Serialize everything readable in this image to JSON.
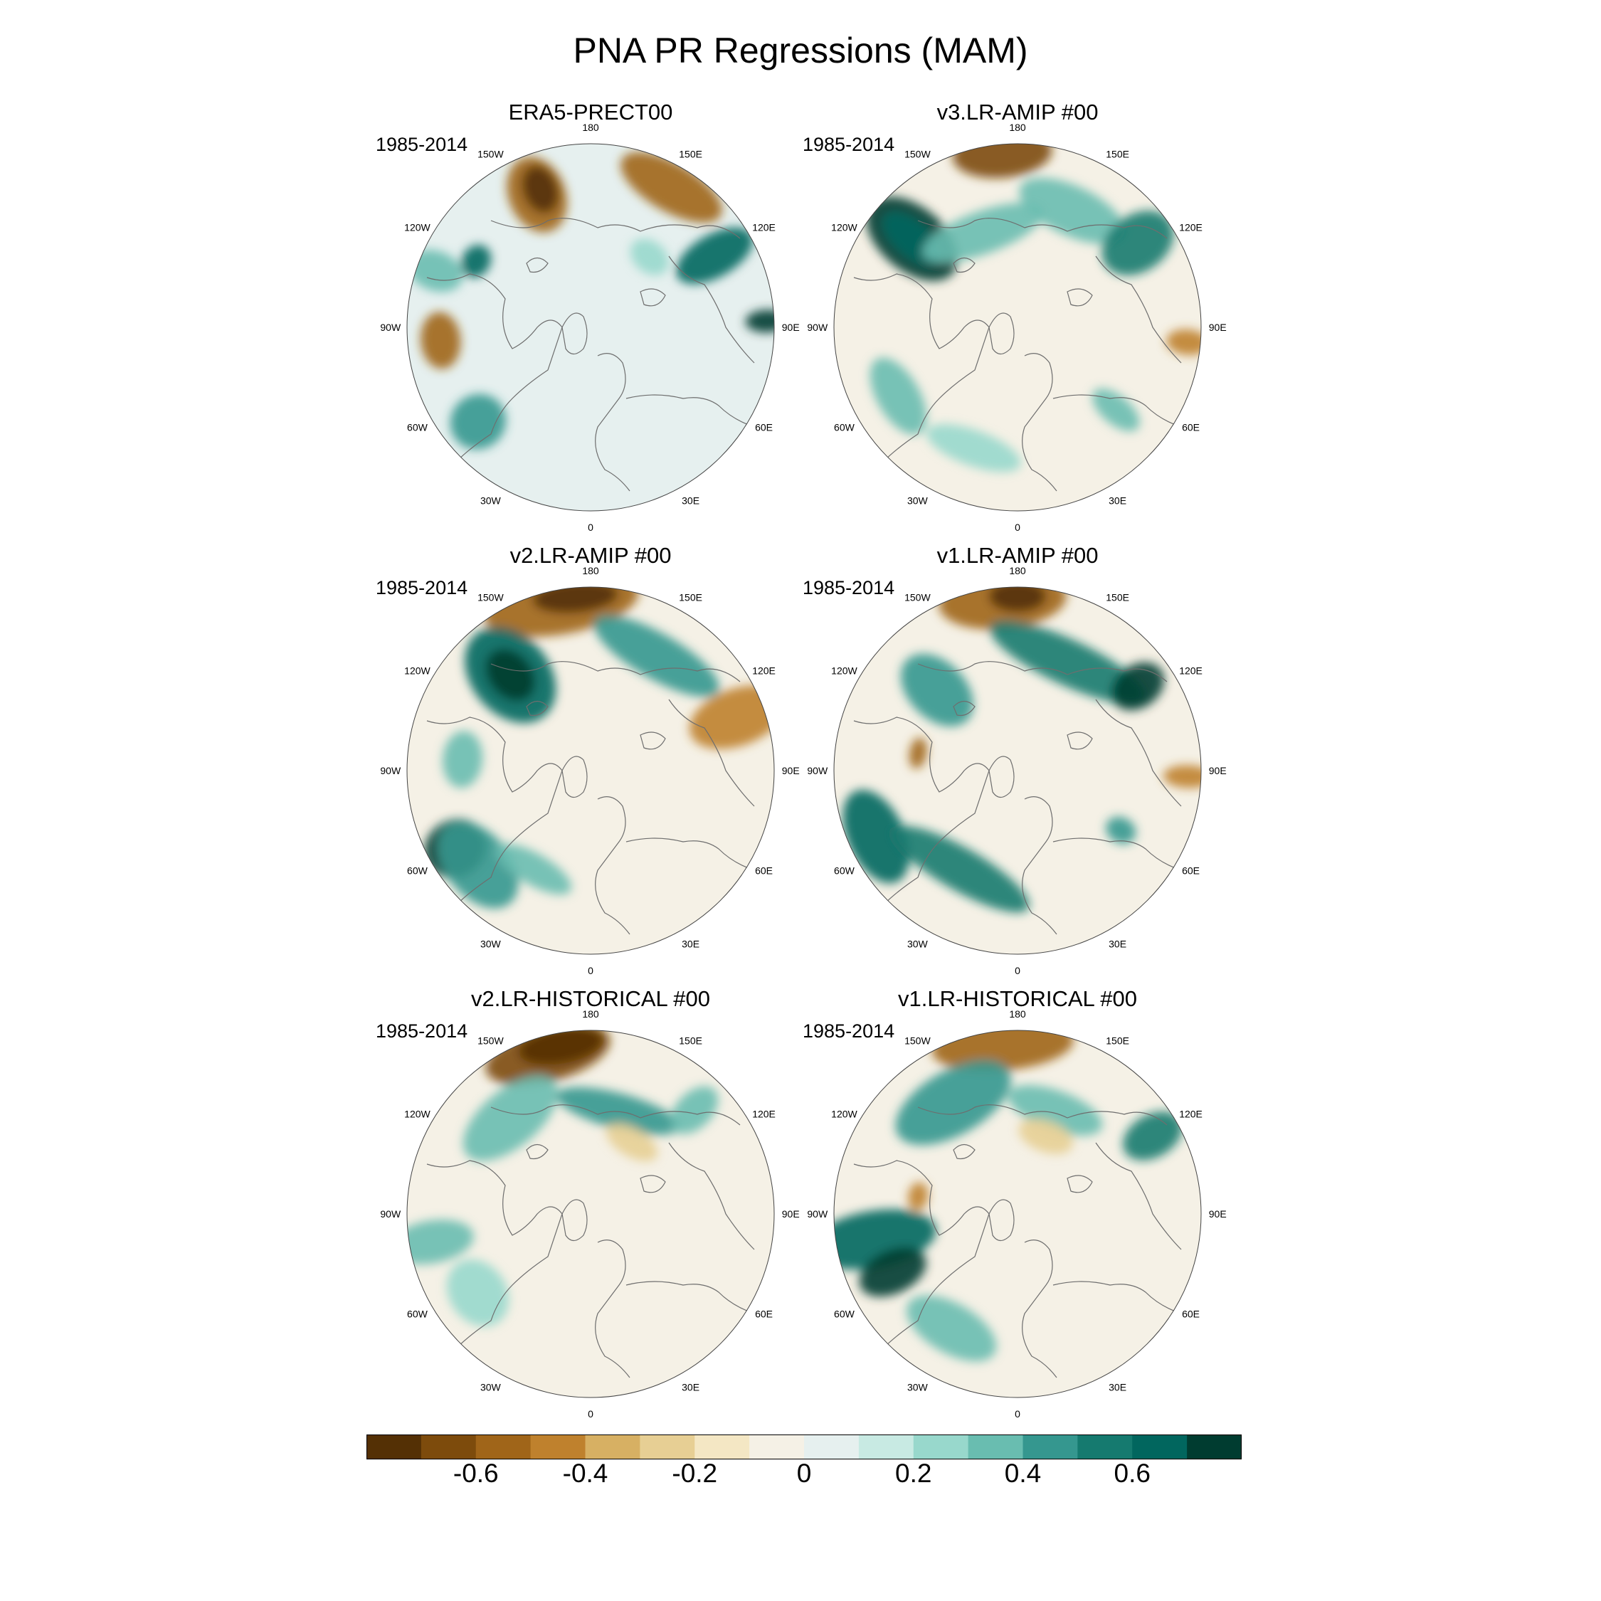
{
  "title": "PNA PR Regressions (MAM)",
  "colors": {
    "scale": [
      "#543005",
      "#7d4b0c",
      "#a06519",
      "#bf812d",
      "#d7b063",
      "#e7cf94",
      "#f4e7c4",
      "#f5f1e6",
      "#e6f0ef",
      "#c8eae3",
      "#98d8cc",
      "#69bdb0",
      "#35978f",
      "#157a6f",
      "#01665e",
      "#003c30"
    ],
    "coast": "#6e6e6e"
  },
  "colorbar": {
    "labels": [
      "-0.6",
      "-0.4",
      "-0.2",
      "0",
      "0.2",
      "0.4",
      "0.6"
    ],
    "min": -0.8,
    "max": 0.8,
    "step": 0.1
  },
  "longitude_labels": [
    "180",
    "150E",
    "120E",
    "90E",
    "60E",
    "30E",
    "0",
    "30W",
    "60W",
    "90W",
    "120W",
    "150W"
  ],
  "panels": [
    {
      "title": "ERA5-PRECT00",
      "period": "1985-2014"
    },
    {
      "title": "v3.LR-AMIP  #00",
      "period": "1985-2014"
    },
    {
      "title": "v2.LR-AMIP  #00",
      "period": "1985-2014"
    },
    {
      "title": "v1.LR-AMIP  #00",
      "period": "1985-2014"
    },
    {
      "title": "v2.LR-HISTORICAL  #00",
      "period": "1985-2014"
    },
    {
      "title": "v1.LR-HISTORICAL  #00",
      "period": "1985-2014"
    }
  ]
}
